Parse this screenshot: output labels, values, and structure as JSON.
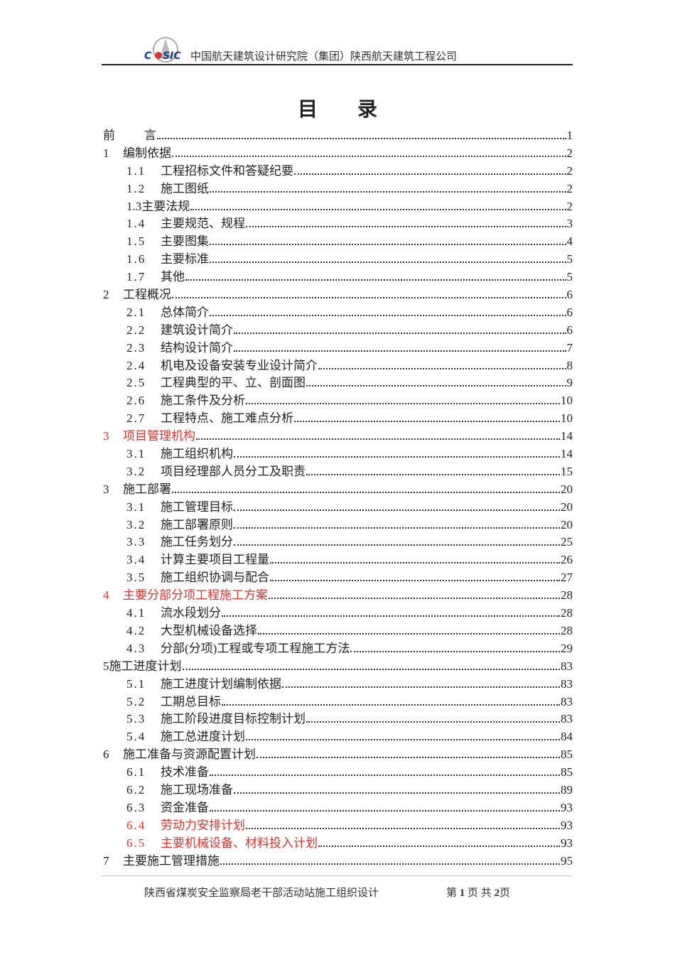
{
  "header": {
    "logo_text": "CASIC",
    "company": "中国航天建筑设计研究院（集团）陕西航天建筑工程公司"
  },
  "title": [
    "目",
    "录"
  ],
  "toc": [
    {
      "num": "前",
      "title": "言",
      "page": "1",
      "level": 0
    },
    {
      "num": "1",
      "title": "编制依据",
      "page": "2",
      "level": 0
    },
    {
      "num": "1.1",
      "title": "工程招标文件和答疑纪要",
      "page": "2",
      "level": 1
    },
    {
      "num": "1.2",
      "title": "施工图纸",
      "page": "2",
      "level": 1
    },
    {
      "num": "1.3",
      "title": "主要法规",
      "page": "2",
      "level": 1,
      "tight": true
    },
    {
      "num": "1.4",
      "title": "主要规范、规程",
      "page": "3",
      "level": 1
    },
    {
      "num": "1.5",
      "title": "主要图集",
      "page": "4",
      "level": 1
    },
    {
      "num": "1.6",
      "title": "主要标准",
      "page": "5",
      "level": 1
    },
    {
      "num": "1.7",
      "title": "其他",
      "page": "5",
      "level": 1
    },
    {
      "num": "2",
      "title": "工程概况",
      "page": "6",
      "level": 0
    },
    {
      "num": "2.1",
      "title": "总体简介",
      "page": "6",
      "level": 1
    },
    {
      "num": "2.2",
      "title": "建筑设计简介",
      "page": "6",
      "level": 1
    },
    {
      "num": "2.3",
      "title": "结构设计简介",
      "page": "7",
      "level": 1
    },
    {
      "num": "2.4",
      "title": "机电及设备安装专业设计简介",
      "page": "8",
      "level": 1
    },
    {
      "num": "2.5",
      "title": "工程典型的平、立、剖面图",
      "page": "9",
      "level": 1
    },
    {
      "num": "2.6",
      "title": "施工条件及分析",
      "page": "10",
      "level": 1
    },
    {
      "num": "2.7",
      "title": "工程特点、施工难点分析",
      "page": "10",
      "level": 1
    },
    {
      "num": "3",
      "title": "项目管理机构",
      "page": "14",
      "level": 0,
      "red": true
    },
    {
      "num": "3.1",
      "title": "施工组织机构",
      "page": "14",
      "level": 1
    },
    {
      "num": "3.2",
      "title": "项目经理部人员分工及职责",
      "page": "15",
      "level": 1
    },
    {
      "num": "3",
      "title": "施工部署",
      "page": "20",
      "level": 0
    },
    {
      "num": "3.1",
      "title": "施工管理目标",
      "page": "20",
      "level": 1
    },
    {
      "num": "3.2",
      "title": "施工部署原则",
      "page": "20",
      "level": 1
    },
    {
      "num": "3.3",
      "title": "施工任务划分",
      "page": "25",
      "level": 1
    },
    {
      "num": "3.4",
      "title": "计算主要项目工程量",
      "page": "26",
      "level": 1
    },
    {
      "num": "3.5",
      "title": "施工组织协调与配合",
      "page": "27",
      "level": 1
    },
    {
      "num": "4",
      "title": "主要分部分项工程施工方案",
      "page": "28",
      "level": 0,
      "red": true
    },
    {
      "num": "4.1",
      "title": "流水段划分",
      "page": "28",
      "level": 1
    },
    {
      "num": "4.2",
      "title": "大型机械设备选择",
      "page": "28",
      "level": 1
    },
    {
      "num": "4.3",
      "title": "分部(分项)工程或专项工程施工方法",
      "page": "29",
      "level": 1
    },
    {
      "num": "5",
      "title": "施工进度计划",
      "page": "83",
      "level": 0,
      "tight": true
    },
    {
      "num": "5.1",
      "title": "施工进度计划编制依据",
      "page": "83",
      "level": 1
    },
    {
      "num": "5.2",
      "title": "工期总目标",
      "page": "83",
      "level": 1
    },
    {
      "num": "5.3",
      "title": "施工阶段进度目标控制计划",
      "page": "83",
      "level": 1
    },
    {
      "num": "5.4",
      "title": "施工总进度计划",
      "page": "84",
      "level": 1
    },
    {
      "num": "6",
      "title": "施工准备与资源配置计划",
      "page": "85",
      "level": 0
    },
    {
      "num": "6.1",
      "title": "技术准备",
      "page": "85",
      "level": 1
    },
    {
      "num": "6.2",
      "title": "施工现场准备",
      "page": "89",
      "level": 1
    },
    {
      "num": "6.3",
      "title": "资金准备",
      "page": "93",
      "level": 1
    },
    {
      "num": "6.4",
      "title": "劳动力安排计划",
      "page": "93",
      "level": 1,
      "red": true
    },
    {
      "num": "6.5",
      "title": "主要机械设备、材料投入计划",
      "page": "93",
      "level": 1,
      "red": true
    },
    {
      "num": "7",
      "title": "主要施工管理措施",
      "page": "95",
      "level": 0
    }
  ],
  "footer": {
    "doc_title": "陕西省煤炭安全监察局老干部活动站施工组织设计",
    "page_prefix": "第",
    "page_current": "1",
    "page_mid": "页 共",
    "page_total": "2",
    "page_suffix": "页"
  },
  "colors": {
    "red_entry": "#e8302a",
    "text": "#222222"
  }
}
